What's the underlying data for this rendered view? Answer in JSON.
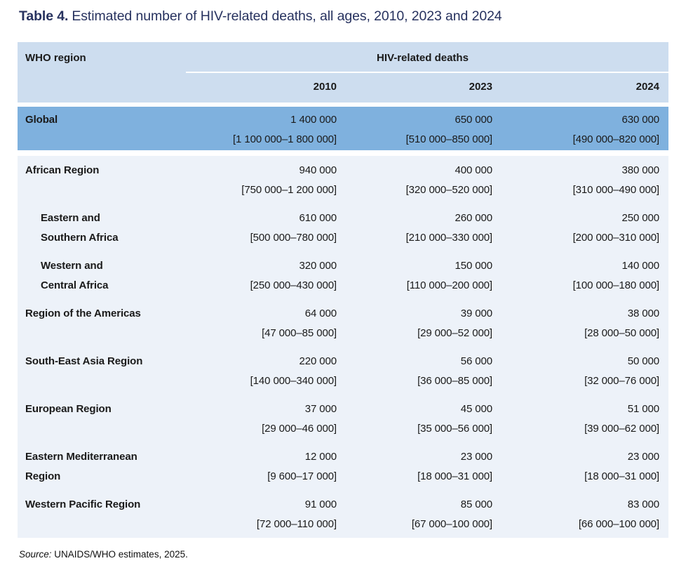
{
  "title": {
    "label": "Table 4.",
    "text": "Estimated number of HIV-related deaths, all ages, 2010, 2023 and 2024"
  },
  "table": {
    "region_header": "WHO region",
    "group_header": "HIV-related deaths",
    "years": [
      "2010",
      "2023",
      "2024"
    ],
    "global": {
      "name1": "Global",
      "v1": "1 400 000",
      "r1": "[1 100 000–1 800 000]",
      "v2": "650 000",
      "r2": "[510 000–850 000]",
      "v3": "630 000",
      "r3": "[490 000–820 000]"
    },
    "rows": [
      {
        "name1": "African Region",
        "name2": "",
        "v1": "940 000",
        "r1": "[750 000–1 200 000]",
        "v2": "400 000",
        "r2": "[320 000–520 000]",
        "v3": "380 000",
        "r3": "[310 000–490 000]"
      },
      {
        "name1": "Eastern and",
        "name2": "Southern Africa",
        "v1": "610 000",
        "r1": "[500 000–780 000]",
        "v2": "260 000",
        "r2": "[210 000–330 000]",
        "v3": "250 000",
        "r3": "[200 000–310 000]"
      },
      {
        "name1": "Western and",
        "name2": "Central Africa",
        "v1": "320 000",
        "r1": "[250 000–430 000]",
        "v2": "150 000",
        "r2": "[110 000–200 000]",
        "v3": "140 000",
        "r3": "[100 000–180 000]"
      },
      {
        "name1": "Region of the Americas",
        "name2": "",
        "v1": "64 000",
        "r1": "[47 000–85 000]",
        "v2": "39 000",
        "r2": "[29 000–52 000]",
        "v3": "38 000",
        "r3": "[28 000–50 000]"
      },
      {
        "name1": "South-East Asia Region",
        "name2": "",
        "v1": "220 000",
        "r1": "[140 000–340 000]",
        "v2": "56 000",
        "r2": "[36 000–85 000]",
        "v3": "50 000",
        "r3": "[32 000–76 000]"
      },
      {
        "name1": "European Region",
        "name2": "",
        "v1": "37 000",
        "r1": "[29 000–46 000]",
        "v2": "45 000",
        "r2": "[35 000–56 000]",
        "v3": "51 000",
        "r3": "[39 000–62 000]"
      },
      {
        "name1": "Eastern Mediterranean",
        "name2": "Region",
        "v1": "12 000",
        "r1": "[9 600–17 000]",
        "v2": "23 000",
        "r2": "[18 000–31 000]",
        "v3": "23 000",
        "r3": "[18 000–31 000]"
      },
      {
        "name1": "Western Pacific Region",
        "name2": "",
        "v1": "91 000",
        "r1": "[72 000–110 000]",
        "v2": "85 000",
        "r2": "[67 000–100 000]",
        "v3": "83 000",
        "r3": "[66 000–100 000]"
      }
    ]
  },
  "source": {
    "label": "Source:",
    "text": "UNAIDS/WHO estimates, 2025."
  },
  "colors": {
    "header_bg": "#cdddef",
    "global_row_bg": "#7fb1de",
    "body_bg": "#edf2f9",
    "title_text": "#27325f",
    "body_text": "#1a1a1a"
  }
}
